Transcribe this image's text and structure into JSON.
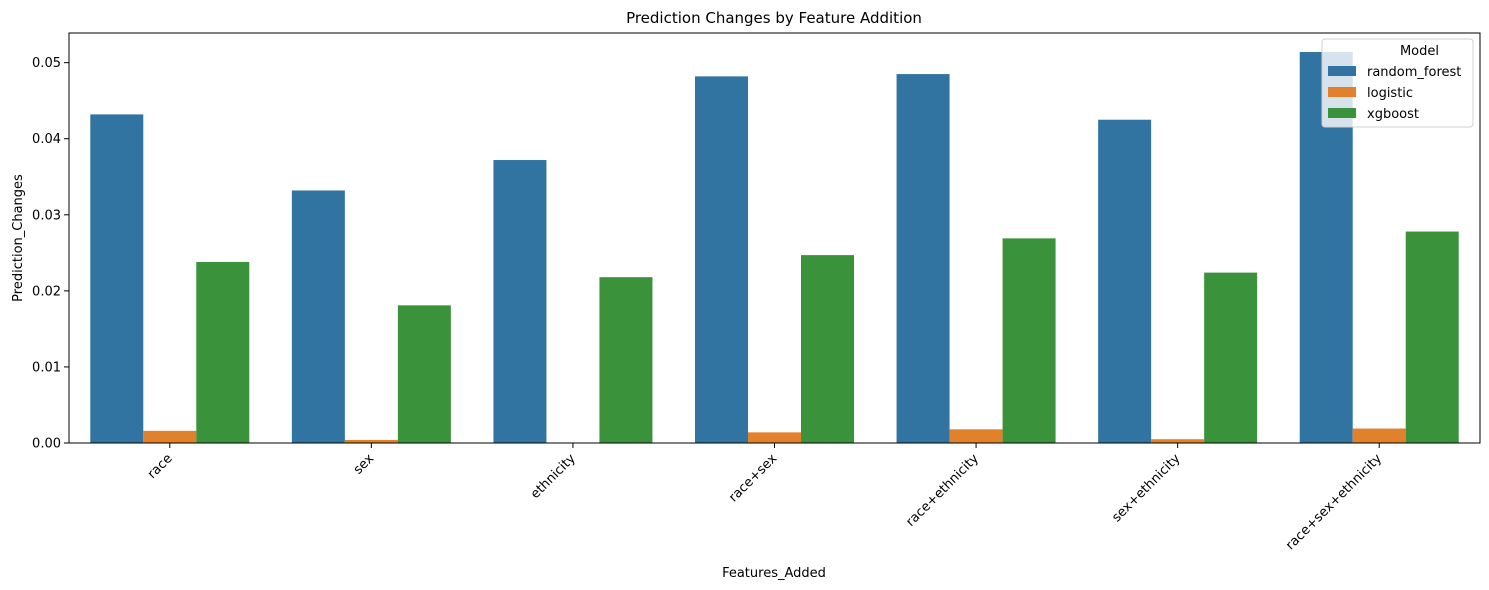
{
  "chart_data": {
    "type": "bar",
    "title": "Prediction Changes by Feature Addition",
    "xlabel": "Features_Added",
    "ylabel": "Prediction_Changes",
    "categories": [
      "race",
      "sex",
      "ethnicity",
      "race+sex",
      "race+ethnicity",
      "sex+ethnicity",
      "race+sex+ethnicity"
    ],
    "series": [
      {
        "name": "random_forest",
        "color": "#3274a1",
        "values": [
          0.0432,
          0.0332,
          0.0372,
          0.0482,
          0.0485,
          0.0425,
          0.0514
        ]
      },
      {
        "name": "logistic",
        "color": "#e1812c",
        "values": [
          0.0016,
          0.0004,
          0.0,
          0.0014,
          0.0018,
          0.0005,
          0.0019
        ]
      },
      {
        "name": "xgboost",
        "color": "#3a923a",
        "values": [
          0.0238,
          0.0181,
          0.0218,
          0.0247,
          0.0269,
          0.0224,
          0.0278
        ]
      }
    ],
    "yticks": [
      "0.00",
      "0.01",
      "0.02",
      "0.03",
      "0.04",
      "0.05"
    ],
    "ylim": [
      0,
      0.0539
    ],
    "legend": {
      "title": "Model",
      "placement": "top-right"
    },
    "grid": false
  }
}
